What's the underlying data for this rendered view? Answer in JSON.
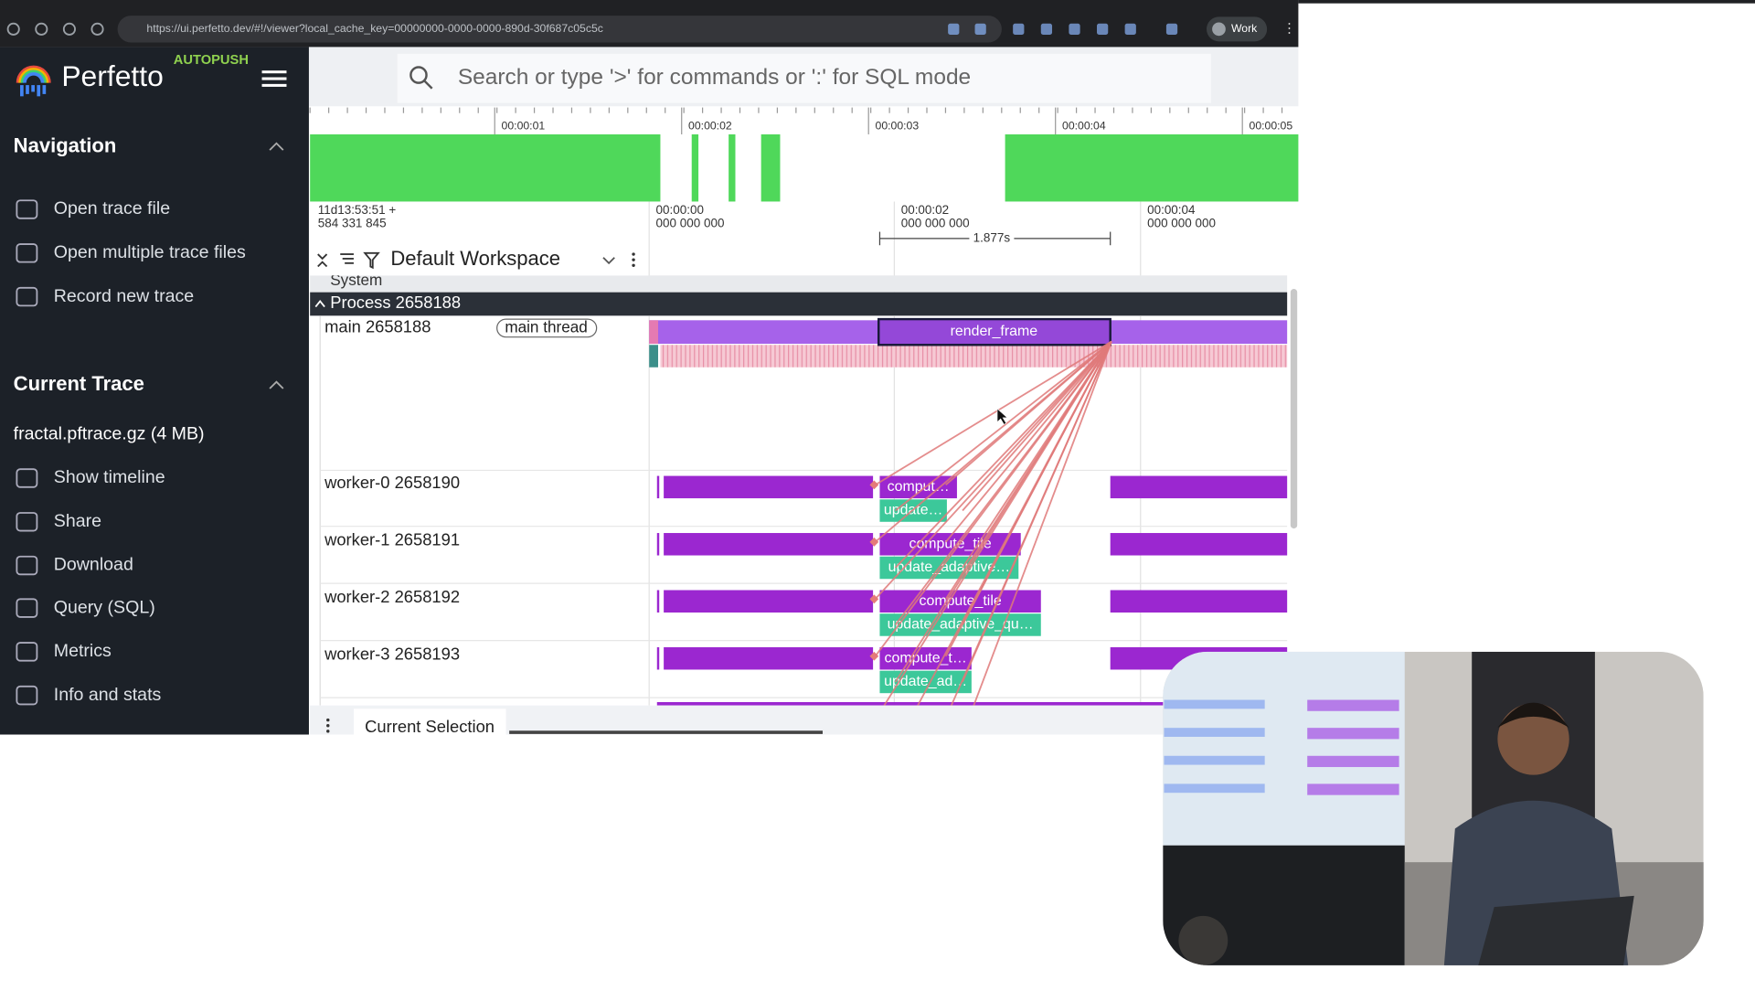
{
  "browser": {
    "url": "https://ui.perfetto.dev/#!/viewer?local_cache_key=00000000-0000-0000-890d-30f687c05c5c",
    "profile": "Work"
  },
  "sidebar": {
    "brand": "Perfetto",
    "badge": "AUTOPUSH",
    "sections": [
      {
        "title": "Navigation",
        "items": [
          "Open trace file",
          "Open multiple trace files",
          "Record new trace"
        ]
      },
      {
        "title": "Current Trace",
        "trace": "fractal.pftrace.gz (4 MB)",
        "items": [
          "Show timeline",
          "Share",
          "Download",
          "Query (SQL)",
          "Metrics",
          "Info and stats"
        ]
      }
    ]
  },
  "search": {
    "placeholder": "Search or type '>' for commands or ':' for SQL mode"
  },
  "overview": {
    "ticks": [
      "00:00:01",
      "00:00:02",
      "00:00:03",
      "00:00:04",
      "00:00:05"
    ]
  },
  "timeline": {
    "offset": [
      "11d13:53:51 +",
      "584 331 845"
    ],
    "marks": [
      [
        "00:00:00",
        "000 000 000"
      ],
      [
        "00:00:02",
        "000 000 000"
      ],
      [
        "00:00:04",
        "000 000 000"
      ]
    ],
    "measure": "1.877s"
  },
  "workspace": "Default Workspace",
  "groups": [
    "System",
    "Process 2658188"
  ],
  "tracks": [
    {
      "name": "main 2658188",
      "tag": "main thread",
      "slices": [
        "render_frame"
      ]
    },
    {
      "name": "worker-0 2658190",
      "slices": [
        "comput…",
        "update…"
      ]
    },
    {
      "name": "worker-1 2658191",
      "slices": [
        "compute_tile",
        "update_adaptive…"
      ]
    },
    {
      "name": "worker-2 2658192",
      "slices": [
        "compute_tile",
        "update_adaptive_qu…"
      ]
    },
    {
      "name": "worker-3 2658193",
      "slices": [
        "compute_t…",
        "update_ad…"
      ]
    }
  ],
  "bottom": {
    "tab": "Current Selection"
  }
}
